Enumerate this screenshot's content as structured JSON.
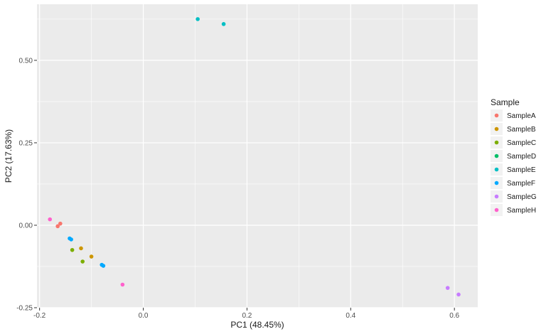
{
  "chart_data": {
    "type": "scatter",
    "xlabel": "PC1 (48.45%)",
    "ylabel": "PC2 (17.63%)",
    "xlim": [
      -0.205,
      0.645
    ],
    "ylim": [
      -0.25,
      0.67
    ],
    "x_ticks": [
      {
        "value": -0.2,
        "label": "-0.2"
      },
      {
        "value": 0.0,
        "label": "0.0"
      },
      {
        "value": 0.2,
        "label": "0.2"
      },
      {
        "value": 0.4,
        "label": "0.4"
      },
      {
        "value": 0.6,
        "label": "0.6"
      }
    ],
    "x_minor": [
      -0.1,
      0.1,
      0.3,
      0.5
    ],
    "y_ticks": [
      {
        "value": -0.25,
        "label": "-0.25"
      },
      {
        "value": 0.0,
        "label": "0.00"
      },
      {
        "value": 0.25,
        "label": "0.25"
      },
      {
        "value": 0.5,
        "label": "0.50"
      }
    ],
    "y_minor": [
      -0.125,
      0.125,
      0.375,
      0.625
    ],
    "grid": true,
    "legend": {
      "title": "Sample",
      "position": "right"
    },
    "series": [
      {
        "name": "SampleA",
        "color": "#F8766D",
        "points": [
          [
            -0.16,
            0.005
          ],
          [
            -0.165,
            -0.003
          ]
        ]
      },
      {
        "name": "SampleB",
        "color": "#CD9600",
        "points": [
          [
            -0.12,
            -0.07
          ],
          [
            -0.1,
            -0.095
          ]
        ]
      },
      {
        "name": "SampleC",
        "color": "#7CAE00",
        "points": [
          [
            -0.137,
            -0.075
          ],
          [
            -0.117,
            -0.11
          ]
        ]
      },
      {
        "name": "SampleD",
        "color": "#00BE67",
        "points": []
      },
      {
        "name": "SampleE",
        "color": "#00BFC4",
        "points": [
          [
            0.105,
            0.625
          ],
          [
            0.155,
            0.61
          ]
        ]
      },
      {
        "name": "SampleF",
        "color": "#00A9FF",
        "points": [
          [
            -0.142,
            -0.04
          ],
          [
            -0.139,
            -0.043
          ],
          [
            -0.08,
            -0.12
          ],
          [
            -0.077,
            -0.123
          ]
        ]
      },
      {
        "name": "SampleG",
        "color": "#C77CFF",
        "points": [
          [
            0.587,
            -0.19
          ],
          [
            0.608,
            -0.21
          ]
        ]
      },
      {
        "name": "SampleH",
        "color": "#FF61CC",
        "points": [
          [
            -0.18,
            0.018
          ],
          [
            -0.04,
            -0.18
          ]
        ]
      }
    ]
  }
}
